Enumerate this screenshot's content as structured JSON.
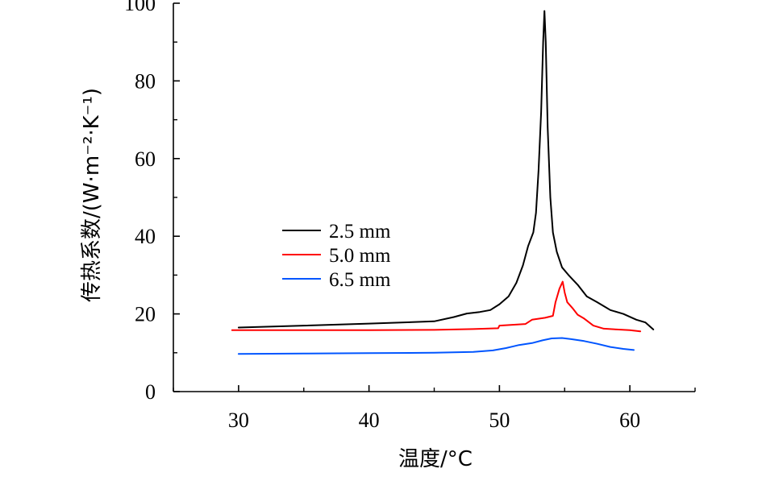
{
  "chart_data": {
    "type": "line",
    "title": "",
    "xlabel": "温度/°C",
    "ylabel": "传热系数/(W·m⁻²·K⁻¹)",
    "xlim": [
      25,
      65
    ],
    "ylim": [
      0,
      100
    ],
    "xticks": [
      30,
      40,
      50,
      60
    ],
    "yticks": [
      0,
      20,
      40,
      60,
      80,
      100
    ],
    "x_tick_labels": [
      "30",
      "40",
      "50",
      "60"
    ],
    "y_tick_labels": [
      "0",
      "20",
      "40",
      "60",
      "80",
      "100"
    ],
    "grid": false,
    "legend_position": "center-left",
    "series": [
      {
        "name": "2.5 mm",
        "color": "#000000",
        "points": [
          [
            30.0,
            16.5
          ],
          [
            35,
            17.0
          ],
          [
            40,
            17.5
          ],
          [
            45,
            18.1
          ],
          [
            46.5,
            19.2
          ],
          [
            47.5,
            20.1
          ],
          [
            48.5,
            20.5
          ],
          [
            49.3,
            21.0
          ],
          [
            50,
            22.5
          ],
          [
            50.7,
            24.5
          ],
          [
            51.3,
            28.0
          ],
          [
            51.8,
            32.5
          ],
          [
            52.2,
            37.5
          ],
          [
            52.6,
            41.0
          ],
          [
            52.8,
            46.0
          ],
          [
            53.0,
            57.0
          ],
          [
            53.2,
            72.0
          ],
          [
            53.35,
            90.0
          ],
          [
            53.45,
            98.0
          ],
          [
            53.55,
            90.0
          ],
          [
            53.7,
            68.0
          ],
          [
            53.9,
            50.0
          ],
          [
            54.1,
            41.0
          ],
          [
            54.4,
            36.0
          ],
          [
            54.8,
            32.0
          ],
          [
            55.3,
            30.0
          ],
          [
            56.0,
            27.5
          ],
          [
            56.7,
            24.5
          ],
          [
            57.5,
            23.0
          ],
          [
            58.5,
            21.0
          ],
          [
            59.5,
            20.0
          ],
          [
            60.5,
            18.5
          ],
          [
            61.2,
            17.8
          ],
          [
            61.8,
            16.0
          ]
        ]
      },
      {
        "name": "5.0 mm",
        "color": "#ff0000",
        "points": [
          [
            29.5,
            15.8
          ],
          [
            35,
            15.8
          ],
          [
            40,
            15.8
          ],
          [
            45,
            15.9
          ],
          [
            48,
            16.1
          ],
          [
            49.9,
            16.3
          ],
          [
            50,
            17.0
          ],
          [
            51,
            17.2
          ],
          [
            52,
            17.4
          ],
          [
            52.5,
            18.5
          ],
          [
            53.5,
            19.0
          ],
          [
            54.1,
            19.5
          ],
          [
            54.3,
            23.0
          ],
          [
            54.6,
            26.5
          ],
          [
            54.85,
            28.3
          ],
          [
            55.0,
            25.5
          ],
          [
            55.2,
            23.0
          ],
          [
            55.6,
            21.5
          ],
          [
            56.0,
            19.8
          ],
          [
            56.5,
            18.8
          ],
          [
            57.2,
            17.0
          ],
          [
            58,
            16.2
          ],
          [
            59,
            16.0
          ],
          [
            60,
            15.8
          ],
          [
            60.8,
            15.5
          ]
        ]
      },
      {
        "name": "6.5 mm",
        "color": "#0055ff",
        "points": [
          [
            30.0,
            9.7
          ],
          [
            35,
            9.8
          ],
          [
            40,
            9.9
          ],
          [
            45,
            10.0
          ],
          [
            48,
            10.2
          ],
          [
            49.5,
            10.6
          ],
          [
            50.5,
            11.2
          ],
          [
            51.5,
            12.0
          ],
          [
            52.5,
            12.5
          ],
          [
            53.3,
            13.2
          ],
          [
            54.0,
            13.7
          ],
          [
            54.8,
            13.8
          ],
          [
            55.5,
            13.5
          ],
          [
            56.5,
            13.0
          ],
          [
            57.5,
            12.3
          ],
          [
            58.5,
            11.5
          ],
          [
            59.5,
            11.0
          ],
          [
            60.3,
            10.7
          ]
        ]
      }
    ]
  }
}
